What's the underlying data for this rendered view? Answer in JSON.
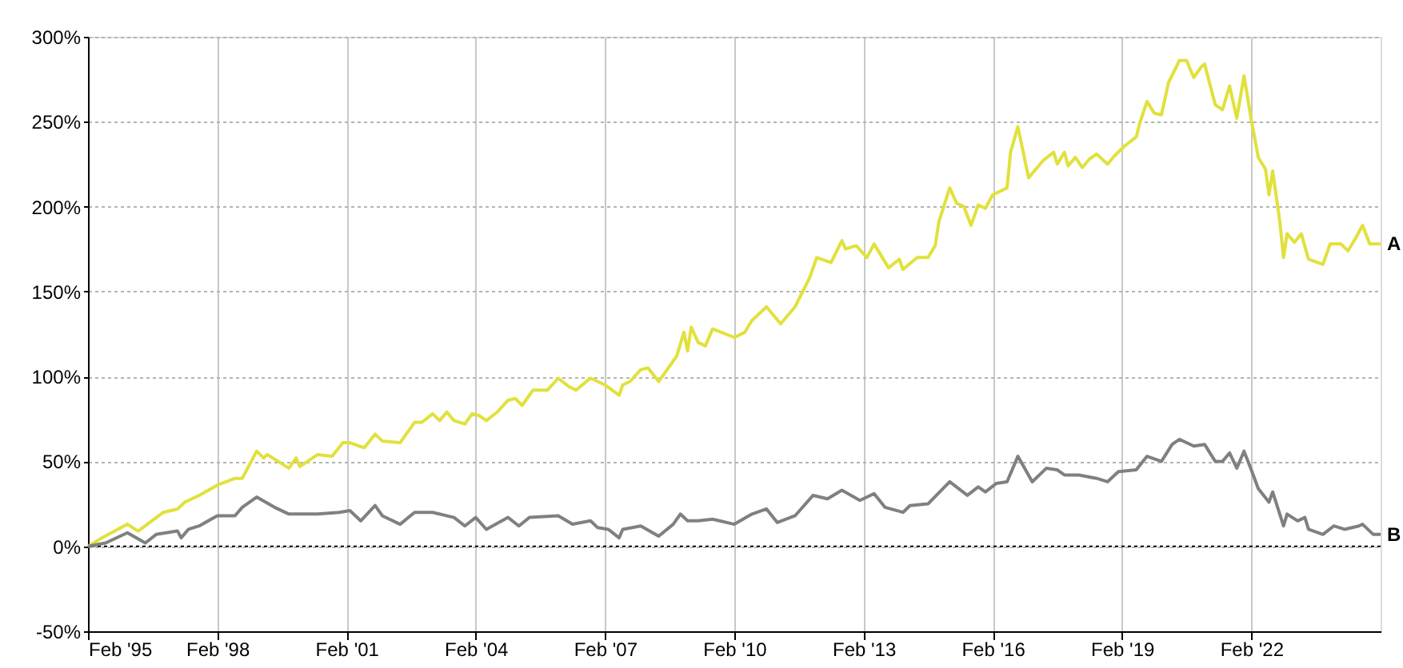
{
  "chart_data": {
    "type": "line",
    "xlim": [
      "1995-02-01",
      "2025-02-01"
    ],
    "xticks": [
      {
        "value": "1995-02-01",
        "label": "Feb '95"
      },
      {
        "value": "1998-02-01",
        "label": "Feb '98"
      },
      {
        "value": "2001-02-01",
        "label": "Feb '01"
      },
      {
        "value": "2004-02-01",
        "label": "Feb '04"
      },
      {
        "value": "2007-02-01",
        "label": "Feb '07"
      },
      {
        "value": "2010-02-01",
        "label": "Feb '10"
      },
      {
        "value": "2013-02-01",
        "label": "Feb '13"
      },
      {
        "value": "2016-02-01",
        "label": "Feb '16"
      },
      {
        "value": "2019-02-01",
        "label": "Feb '19"
      },
      {
        "value": "2022-02-01",
        "label": "Feb '22"
      }
    ],
    "ylim": [
      -50,
      300
    ],
    "yticks": [
      {
        "value": -50,
        "label": "-50%"
      },
      {
        "value": 0,
        "label": "0%"
      },
      {
        "value": 50,
        "label": "50%"
      },
      {
        "value": 100,
        "label": "100%"
      },
      {
        "value": 150,
        "label": "150%"
      },
      {
        "value": 200,
        "label": "200%"
      },
      {
        "value": 250,
        "label": "250%"
      },
      {
        "value": 300,
        "label": "300%"
      }
    ],
    "grid": true,
    "legend": false,
    "marker": "none",
    "line_style": "solid",
    "ref_lines": [
      {
        "axis": "y",
        "value": 0,
        "color": "#000000",
        "line_style": "dotted"
      }
    ],
    "series": [
      {
        "name": "A",
        "color": "#e1e13c",
        "x": [
          "1995-02",
          "1995-06",
          "1996-01",
          "1996-04",
          "1996-11",
          "1997-03",
          "1997-05",
          "1997-09",
          "1998-02",
          "1998-07",
          "1998-09",
          "1998-11",
          "1999-01",
          "1999-03",
          "1999-04",
          "1999-10",
          "1999-12",
          "2000-01",
          "2000-06",
          "2000-10",
          "2001-01",
          "2001-03",
          "2001-07",
          "2001-10",
          "2001-12",
          "2002-05",
          "2002-09",
          "2002-11",
          "2003-02",
          "2003-04",
          "2003-06",
          "2003-08",
          "2003-11",
          "2004-01",
          "2004-03",
          "2004-05",
          "2004-08",
          "2004-11",
          "2005-01",
          "2005-03",
          "2005-06",
          "2005-10",
          "2006-01",
          "2006-04",
          "2006-06",
          "2006-10",
          "2007-02",
          "2007-06",
          "2007-07",
          "2007-09",
          "2007-12",
          "2008-02",
          "2008-05",
          "2008-08",
          "2008-10",
          "2008-12",
          "2009-01",
          "2009-02",
          "2009-04",
          "2009-06",
          "2009-08",
          "2010-02",
          "2010-05",
          "2010-07",
          "2010-11",
          "2011-03",
          "2011-07",
          "2011-11",
          "2012-01",
          "2012-05",
          "2012-08",
          "2012-09",
          "2012-12",
          "2013-03",
          "2013-05",
          "2013-09",
          "2013-12",
          "2014-01",
          "2014-05",
          "2014-08",
          "2014-10",
          "2014-11",
          "2015-02",
          "2015-04",
          "2015-06",
          "2015-08",
          "2015-10",
          "2015-12",
          "2016-02",
          "2016-06",
          "2016-07",
          "2016-09",
          "2016-12",
          "2017-04",
          "2017-07",
          "2017-08",
          "2017-10",
          "2017-11",
          "2018-01",
          "2018-03",
          "2018-05",
          "2018-07",
          "2018-10",
          "2018-12",
          "2019-03",
          "2019-06",
          "2019-07",
          "2019-09",
          "2019-11",
          "2020-01",
          "2020-03",
          "2020-06",
          "2020-08",
          "2020-10",
          "2020-12",
          "2021-01",
          "2021-04",
          "2021-06",
          "2021-08",
          "2021-10",
          "2021-12",
          "2022-02",
          "2022-04",
          "2022-06",
          "2022-07",
          "2022-08",
          "2022-10",
          "2022-11",
          "2022-12",
          "2023-02",
          "2023-04",
          "2023-06",
          "2023-10",
          "2023-12",
          "2024-03",
          "2024-05",
          "2024-07",
          "2024-09",
          "2024-11",
          "2025-02"
        ],
        "values": [
          0,
          5,
          13,
          9,
          20,
          22,
          26,
          30,
          36,
          40,
          40,
          48,
          56,
          52,
          54,
          46,
          52,
          47,
          54,
          53,
          61,
          61,
          58,
          66,
          62,
          61,
          73,
          73,
          78,
          74,
          79,
          74,
          72,
          78,
          77,
          74,
          79,
          86,
          87,
          83,
          92,
          92,
          99,
          94,
          92,
          99,
          95,
          89,
          95,
          97,
          104,
          105,
          97,
          106,
          112,
          126,
          115,
          129,
          120,
          118,
          128,
          123,
          126,
          133,
          141,
          131,
          141,
          158,
          170,
          167,
          180,
          175,
          177,
          170,
          178,
          164,
          169,
          163,
          170,
          170,
          177,
          191,
          211,
          202,
          200,
          189,
          201,
          199,
          207,
          211,
          232,
          247,
          217,
          227,
          232,
          225,
          232,
          224,
          229,
          223,
          228,
          231,
          225,
          230,
          236,
          241,
          249,
          262,
          255,
          254,
          273,
          286,
          286,
          276,
          282,
          284,
          260,
          257,
          271,
          252,
          277,
          251,
          229,
          222,
          207,
          221,
          191,
          170,
          184,
          179,
          184,
          169,
          166,
          178,
          178,
          174,
          181,
          189,
          178,
          178
        ]
      },
      {
        "name": "B",
        "color": "#808080",
        "x": [
          "1995-02",
          "1995-07",
          "1996-01",
          "1996-06",
          "1996-09",
          "1997-03",
          "1997-04",
          "1997-06",
          "1997-09",
          "1998-02",
          "1998-07",
          "1998-09",
          "1999-01",
          "1999-06",
          "1999-10",
          "2000-01",
          "2000-06",
          "2000-12",
          "2001-03",
          "2001-06",
          "2001-10",
          "2001-12",
          "2002-05",
          "2002-09",
          "2003-02",
          "2003-08",
          "2003-11",
          "2004-02",
          "2004-05",
          "2004-11",
          "2005-02",
          "2005-05",
          "2006-01",
          "2006-05",
          "2006-10",
          "2006-12",
          "2007-03",
          "2007-06",
          "2007-07",
          "2007-12",
          "2008-05",
          "2008-09",
          "2008-11",
          "2009-01",
          "2009-04",
          "2009-08",
          "2010-02",
          "2010-07",
          "2010-11",
          "2011-02",
          "2011-07",
          "2011-12",
          "2012-04",
          "2012-08",
          "2013-01",
          "2013-05",
          "2013-08",
          "2014-01",
          "2014-03",
          "2014-08",
          "2015-02",
          "2015-07",
          "2015-10",
          "2015-12",
          "2016-03",
          "2016-06",
          "2016-09",
          "2017-01",
          "2017-05",
          "2017-08",
          "2017-10",
          "2018-02",
          "2018-07",
          "2018-10",
          "2019-01",
          "2019-06",
          "2019-09",
          "2020-01",
          "2020-04",
          "2020-06",
          "2020-10",
          "2021-01",
          "2021-04",
          "2021-06",
          "2021-08",
          "2021-10",
          "2021-12",
          "2022-02",
          "2022-04",
          "2022-07",
          "2022-08",
          "2022-11",
          "2022-12",
          "2023-03",
          "2023-05",
          "2023-06",
          "2023-10",
          "2024-01",
          "2024-04",
          "2024-08",
          "2024-09",
          "2024-12",
          "2025-02"
        ],
        "values": [
          0,
          2,
          8,
          2,
          7,
          9,
          5,
          10,
          12,
          18,
          18,
          23,
          29,
          23,
          19,
          19,
          19,
          20,
          21,
          15,
          24,
          18,
          13,
          20,
          20,
          17,
          12,
          17,
          10,
          17,
          12,
          17,
          18,
          13,
          15,
          11,
          10,
          5,
          10,
          12,
          6,
          13,
          19,
          15,
          15,
          16,
          13,
          19,
          22,
          14,
          18,
          30,
          28,
          33,
          27,
          31,
          23,
          20,
          24,
          25,
          38,
          30,
          35,
          32,
          37,
          38,
          53,
          38,
          46,
          45,
          42,
          42,
          40,
          38,
          44,
          45,
          53,
          50,
          60,
          63,
          59,
          60,
          50,
          50,
          55,
          46,
          56,
          45,
          34,
          26,
          32,
          12,
          19,
          15,
          17,
          10,
          7,
          12,
          10,
          12,
          13,
          7,
          7
        ]
      }
    ]
  }
}
